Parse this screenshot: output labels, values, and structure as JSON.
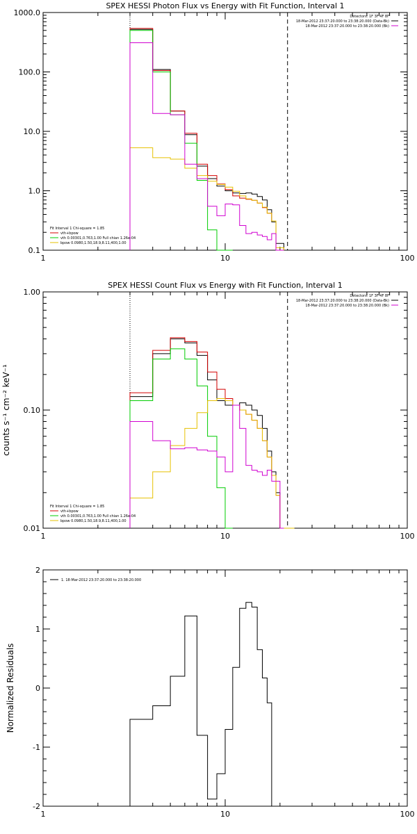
{
  "colors": {
    "total": "#000000",
    "fit_total": "#d40000",
    "vth": "#00cc00",
    "bpow": "#e6c000",
    "background": "#d000d0",
    "frame": "#000000"
  },
  "chart_data": [
    {
      "type": "line",
      "title": "SPEX HESSI Photon Flux vs Energy with Fit Function, Interval 1",
      "xlabel": "",
      "ylabel": "",
      "x_scale": "log",
      "y_scale": "log",
      "xlim": [
        1,
        100
      ],
      "ylim": [
        0.1,
        1000
      ],
      "x_ticks": [
        1,
        10,
        100
      ],
      "x_tick_labels": [
        "1",
        "10",
        "100"
      ],
      "y_ticks": [
        0.1,
        1,
        10,
        100,
        1000
      ],
      "y_tick_labels": [
        "0.1",
        "1.0",
        "10.0",
        "100.0",
        "1000.0"
      ],
      "bin_edges": [
        3,
        4,
        5,
        6,
        7,
        8,
        9,
        10,
        11,
        12,
        13,
        14,
        15,
        16,
        17,
        18,
        19,
        20,
        21,
        22
      ],
      "vlines": [
        {
          "x": 3,
          "style": "dotted"
        },
        {
          "x": 22,
          "style": "dashed"
        }
      ],
      "legend_top": {
        "placement": "top-right",
        "lines": [
          "Detectors: 1F 3F 4F 8F",
          "18-Mar-2012 23:37:20.000 to 23:38:20.000 (Data-Bk)",
          "18-Mar-2012 23:37:20.000 to 23:38:20.000 (Bk)"
        ],
        "line_colors": [
          "",
          "total",
          "background"
        ]
      },
      "legend_fit": {
        "placement": "bottom-left",
        "header": "Fit Interval 1    Chi-square = 1.85",
        "entries": [
          {
            "label": "vth+bpow",
            "color": "fit_total"
          },
          {
            "label": "vth 0.00301,0.763,1.00   Full chian 1.26e-04",
            "color": "vth"
          },
          {
            "label": "bpow 0.0980,1.50,18.9,8.11,400,1.00",
            "color": "bpow"
          }
        ]
      },
      "series": [
        {
          "color": "total",
          "values": [
            520,
            110,
            22,
            8.8,
            2.6,
            1.6,
            1.2,
            1.0,
            0.92,
            0.9,
            0.92,
            0.88,
            0.8,
            0.7,
            0.48,
            0.3,
            0.13,
            0.13
          ]
        },
        {
          "color": "fit_total",
          "values": [
            540,
            106,
            22,
            9.3,
            2.8,
            1.8,
            1.3,
            1.05,
            0.82,
            0.75,
            0.72,
            0.69,
            0.62,
            0.52,
            0.42,
            0.31,
            0.11,
            0.11
          ]
        },
        {
          "color": "vth",
          "values": [
            500,
            100,
            19,
            6.3,
            1.5,
            0.22,
            0.08,
            0.08
          ]
        },
        {
          "color": "bpow",
          "values": [
            5.3,
            3.6,
            3.4,
            2.4,
            1.8,
            1.45,
            1.28,
            1.15,
            0.98,
            0.82,
            0.73,
            0.69,
            0.62,
            0.53,
            0.42,
            0.31,
            0.11,
            0.11
          ]
        },
        {
          "color": "background",
          "values": [
            310,
            20,
            19,
            2.8,
            1.6,
            0.55,
            0.38,
            0.6,
            0.58,
            0.26,
            0.19,
            0.2,
            0.18,
            0.17,
            0.15,
            0.19,
            0.1,
            0.1
          ]
        }
      ]
    },
    {
      "type": "line",
      "title": "SPEX HESSI Count Flux vs Energy with Fit Function, Interval 1",
      "xlabel": "",
      "ylabel": "counts s⁻¹ cm⁻² keV⁻¹",
      "x_scale": "log",
      "y_scale": "log",
      "xlim": [
        1,
        100
      ],
      "ylim": [
        0.01,
        1
      ],
      "x_ticks": [
        1,
        10,
        100
      ],
      "x_tick_labels": [
        "1",
        "10",
        "100"
      ],
      "y_ticks": [
        0.01,
        0.1,
        1
      ],
      "y_tick_labels": [
        "0.01",
        "0.10",
        "1.00"
      ],
      "bin_edges": [
        3,
        4,
        5,
        6,
        7,
        8,
        9,
        10,
        11,
        12,
        13,
        14,
        15,
        16,
        17,
        18,
        19,
        20,
        21,
        22,
        23,
        24
      ],
      "vlines": [
        {
          "x": 3,
          "style": "dotted"
        },
        {
          "x": 22,
          "style": "dashed"
        }
      ],
      "legend_top": {
        "placement": "top-right",
        "lines": [
          "Detectors: 1F 3F 4F 8F",
          "18-Mar-2012 23:37:20.000 to 23:38:20.000 (Data-Bk)",
          "18-Mar-2012 23:37:20.000 to 23:38:20.000 (Bk)"
        ],
        "line_colors": [
          "",
          "total",
          "background"
        ]
      },
      "legend_fit": {
        "placement": "bottom-left",
        "header": "Fit Interval 1    Chi-square = 1.85",
        "entries": [
          {
            "label": "vth+bpow",
            "color": "fit_total"
          },
          {
            "label": "vth 0.00301,0.763,1.00   Full chian 1.26e-04",
            "color": "vth"
          },
          {
            "label": "bpow 0.0980,1.50,18.9,8.11,400,1.00",
            "color": "bpow"
          }
        ]
      },
      "series": [
        {
          "color": "total",
          "values": [
            0.13,
            0.3,
            0.4,
            0.37,
            0.29,
            0.18,
            0.12,
            0.11,
            0.11,
            0.115,
            0.11,
            0.1,
            0.09,
            0.07,
            0.045,
            0.03,
            0.02,
            0.01,
            0.01
          ]
        },
        {
          "color": "fit_total",
          "values": [
            0.14,
            0.32,
            0.41,
            0.38,
            0.31,
            0.21,
            0.15,
            0.125,
            0.11,
            0.1,
            0.092,
            0.082,
            0.07,
            0.055,
            0.04,
            0.028,
            0.019,
            0.01,
            0.01
          ]
        },
        {
          "color": "vth",
          "values": [
            0.12,
            0.27,
            0.33,
            0.27,
            0.16,
            0.06,
            0.022,
            0.01
          ]
        },
        {
          "color": "bpow",
          "values": [
            0.018,
            0.03,
            0.05,
            0.07,
            0.095,
            0.12,
            0.125,
            0.12,
            0.11,
            0.1,
            0.092,
            0.082,
            0.07,
            0.055,
            0.04,
            0.028,
            0.019,
            0.01,
            0.01,
            0.01,
            0.01
          ]
        },
        {
          "color": "background",
          "values": [
            0.08,
            0.055,
            0.047,
            0.048,
            0.046,
            0.045,
            0.04,
            0.03,
            0.11,
            0.07,
            0.034,
            0.031,
            0.03,
            0.028,
            0.031,
            0.025,
            0.025,
            0.01
          ]
        }
      ]
    },
    {
      "type": "line",
      "title": "",
      "xlabel": "",
      "ylabel": "Normalized Residuals",
      "x_scale": "log",
      "y_scale": "linear",
      "xlim": [
        1,
        100
      ],
      "ylim": [
        -2,
        2
      ],
      "x_ticks": [
        1,
        10,
        100
      ],
      "x_tick_labels": [
        "1",
        "10",
        "100"
      ],
      "y_ticks": [
        -2,
        -1,
        0,
        1,
        2
      ],
      "y_tick_labels": [
        "-2",
        "-1",
        "0",
        "1",
        "2"
      ],
      "bin_edges": [
        3,
        4,
        5,
        6,
        7,
        8,
        9,
        10,
        11,
        12,
        13,
        14,
        15,
        16,
        17,
        18,
        19,
        20,
        21,
        22
      ],
      "vlines": [],
      "legend_top": {
        "placement": "top-left",
        "lines": [
          "1. 18-Mar-2012 23:37:20.000 to 23:38:20.000"
        ],
        "line_colors": [
          "total"
        ]
      },
      "series": [
        {
          "color": "total",
          "values": [
            -0.53,
            -0.3,
            0.2,
            1.22,
            -0.8,
            -1.88,
            -1.45,
            -0.7,
            0.35,
            1.35,
            1.45,
            1.37,
            0.65,
            0.17,
            -0.25
          ]
        }
      ]
    }
  ]
}
